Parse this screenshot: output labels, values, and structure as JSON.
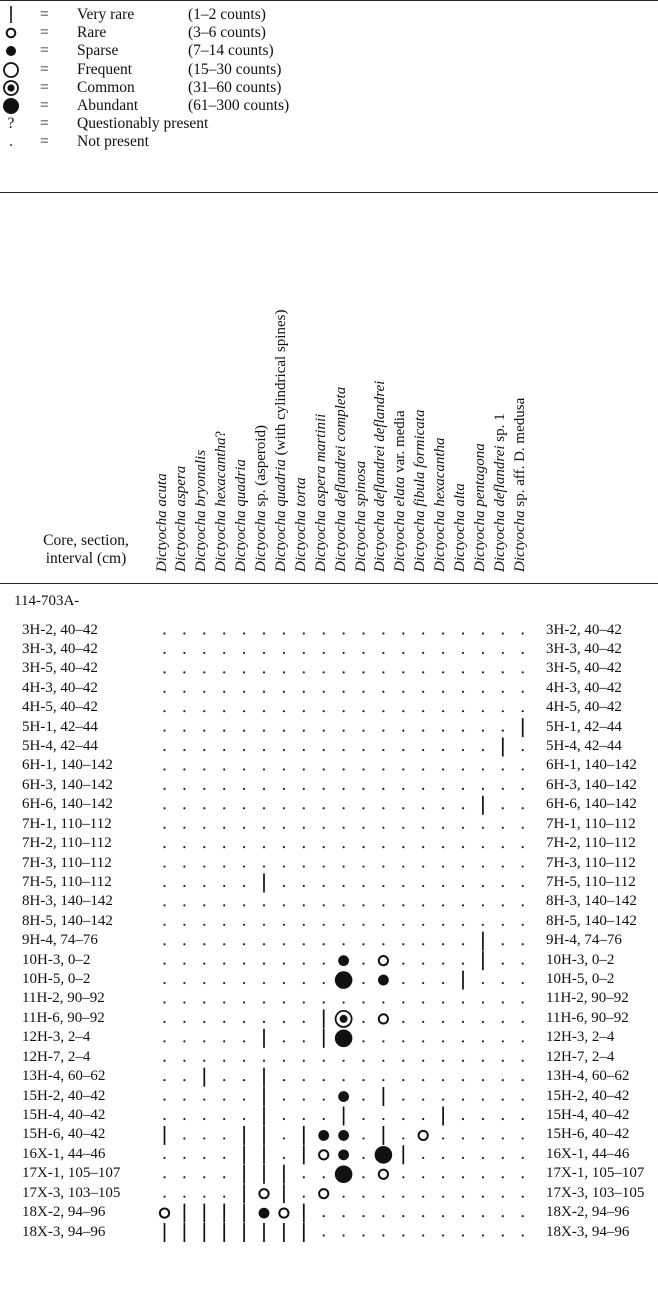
{
  "legend": [
    {
      "symbol": "bar-icon",
      "eq": "=",
      "name": "Very rare",
      "range": "(1–2 counts)"
    },
    {
      "symbol": "small-open-circle-icon",
      "eq": "=",
      "name": "Rare",
      "range": "(3–6 counts)"
    },
    {
      "symbol": "small-filled-circle-icon",
      "eq": "=",
      "name": "Sparse",
      "range": "(7–14 counts)"
    },
    {
      "symbol": "large-open-circle-icon",
      "eq": "=",
      "name": "Frequent",
      "range": "(15–30 counts)"
    },
    {
      "symbol": "dotted-circle-icon",
      "eq": "=",
      "name": "Common",
      "range": "(31–60 counts)"
    },
    {
      "symbol": "large-filled-circle-icon",
      "eq": "=",
      "name": "Abundant",
      "range": "(61–300 counts)"
    },
    {
      "symbol": "?",
      "eq": "=",
      "name": "Questionably present",
      "range": ""
    },
    {
      "symbol": ".",
      "eq": "=",
      "name": "Not present",
      "range": ""
    }
  ],
  "header": {
    "row_header_line1": "Core, section,",
    "row_header_line2": "interval (cm)"
  },
  "taxa": [
    {
      "it": "Dictyocha acuta",
      "rest": ""
    },
    {
      "it": "Dictyocha aspera",
      "rest": ""
    },
    {
      "it": "Dictyocha bryonalis",
      "rest": ""
    },
    {
      "it": "Dictyocha hexacantha",
      "rest": "?"
    },
    {
      "it": "Dictyocha quadria",
      "rest": ""
    },
    {
      "it": "Dictyocha",
      "rest": " sp. (asperoid)"
    },
    {
      "it": "Dictyocha quadria",
      "rest": " (with cylindrical spines)"
    },
    {
      "it": "Dictyocha torta",
      "rest": ""
    },
    {
      "it": "Dictyocha aspera martinii",
      "rest": ""
    },
    {
      "it": "Dictyocha deflandrei completa",
      "rest": ""
    },
    {
      "it": "Dictyocha spinosa",
      "rest": ""
    },
    {
      "it": "Dictyocha deflandrei deflandrei",
      "rest": ""
    },
    {
      "it": "Dictyocha elata",
      "rest": " var. media"
    },
    {
      "it": "Dictyocha fibula formicata",
      "rest": ""
    },
    {
      "it": "Dictyocha hexacantha",
      "rest": ""
    },
    {
      "it": "Dictyocha alta",
      "rest": ""
    },
    {
      "it": "Dictyocha pentagona",
      "rest": ""
    },
    {
      "it": "Dictyocha deflandrei",
      "rest": " sp. 1"
    },
    {
      "it": "Dictyocha",
      "rest": " sp. aff. D. medusa"
    }
  ],
  "hole": "114-703A-",
  "samples": [
    "3H-2, 40–42",
    "3H-3, 40–42",
    "3H-5, 40–42",
    "4H-3, 40–42",
    "4H-5, 40–42",
    "5H-1, 42–44",
    "5H-4, 42–44",
    "6H-1, 140–142",
    "6H-3, 140–142",
    "6H-6, 140–142",
    "7H-1, 110–112",
    "7H-2, 110–112",
    "7H-3, 110–112",
    "7H-5, 110–112",
    "8H-3, 140–142",
    "8H-5, 140–142",
    "9H-4, 74–76",
    "10H-3, 0–2",
    "10H-5, 0–2",
    "11H-2, 90–92",
    "11H-6, 90–92",
    "12H-3, 2–4",
    "12H-7, 2–4",
    "13H-4, 60–62",
    "15H-2, 40–42",
    "15H-4, 40–42",
    "15H-6, 40–42",
    "16X-1, 44–46",
    "17X-1, 105–107",
    "17X-3, 103–105",
    "18X-2, 94–96",
    "18X-3, 94–96"
  ],
  "occurrences": [
    {
      "row": 5,
      "col": 18,
      "code": "bar"
    },
    {
      "row": 6,
      "col": 17,
      "code": "bar"
    },
    {
      "row": 9,
      "col": 16,
      "code": "bar"
    },
    {
      "row": 13,
      "col": 5,
      "code": "bar"
    },
    {
      "row": 16,
      "col": 16,
      "code": "bar"
    },
    {
      "row": 17,
      "col": 9,
      "code": "sparse"
    },
    {
      "row": 17,
      "col": 11,
      "code": "rare"
    },
    {
      "row": 17,
      "col": 16,
      "code": "bar"
    },
    {
      "row": 18,
      "col": 9,
      "code": "abundant"
    },
    {
      "row": 18,
      "col": 11,
      "code": "sparse"
    },
    {
      "row": 18,
      "col": 15,
      "code": "bar"
    },
    {
      "row": 20,
      "col": 8,
      "code": "bar"
    },
    {
      "row": 20,
      "col": 9,
      "code": "common"
    },
    {
      "row": 20,
      "col": 11,
      "code": "rare"
    },
    {
      "row": 21,
      "col": 5,
      "code": "bar"
    },
    {
      "row": 21,
      "col": 8,
      "code": "bar"
    },
    {
      "row": 21,
      "col": 9,
      "code": "abundant"
    },
    {
      "row": 23,
      "col": 2,
      "code": "bar"
    },
    {
      "row": 23,
      "col": 5,
      "code": "bar"
    },
    {
      "row": 24,
      "col": 5,
      "code": "bar"
    },
    {
      "row": 24,
      "col": 9,
      "code": "sparse"
    },
    {
      "row": 24,
      "col": 11,
      "code": "bar"
    },
    {
      "row": 25,
      "col": 5,
      "code": "bar"
    },
    {
      "row": 25,
      "col": 9,
      "code": "bar"
    },
    {
      "row": 25,
      "col": 14,
      "code": "bar"
    },
    {
      "row": 26,
      "col": 0,
      "code": "bar"
    },
    {
      "row": 26,
      "col": 4,
      "code": "bar"
    },
    {
      "row": 26,
      "col": 5,
      "code": "bar"
    },
    {
      "row": 26,
      "col": 7,
      "code": "bar"
    },
    {
      "row": 26,
      "col": 8,
      "code": "sparse"
    },
    {
      "row": 26,
      "col": 9,
      "code": "sparse"
    },
    {
      "row": 26,
      "col": 11,
      "code": "bar"
    },
    {
      "row": 26,
      "col": 13,
      "code": "rare"
    },
    {
      "row": 27,
      "col": 4,
      "code": "bar"
    },
    {
      "row": 27,
      "col": 5,
      "code": "bar"
    },
    {
      "row": 27,
      "col": 7,
      "code": "bar"
    },
    {
      "row": 27,
      "col": 8,
      "code": "rare"
    },
    {
      "row": 27,
      "col": 9,
      "code": "sparse"
    },
    {
      "row": 27,
      "col": 11,
      "code": "abundant"
    },
    {
      "row": 27,
      "col": 12,
      "code": "bar"
    },
    {
      "row": 28,
      "col": 4,
      "code": "bar"
    },
    {
      "row": 28,
      "col": 5,
      "code": "bar"
    },
    {
      "row": 28,
      "col": 6,
      "code": "bar"
    },
    {
      "row": 28,
      "col": 9,
      "code": "abundant"
    },
    {
      "row": 28,
      "col": 11,
      "code": "rare"
    },
    {
      "row": 29,
      "col": 4,
      "code": "bar"
    },
    {
      "row": 29,
      "col": 5,
      "code": "rare"
    },
    {
      "row": 29,
      "col": 6,
      "code": "bar"
    },
    {
      "row": 29,
      "col": 8,
      "code": "rare"
    },
    {
      "row": 30,
      "col": 0,
      "code": "rare"
    },
    {
      "row": 30,
      "col": 1,
      "code": "bar"
    },
    {
      "row": 30,
      "col": 2,
      "code": "bar"
    },
    {
      "row": 30,
      "col": 3,
      "code": "bar"
    },
    {
      "row": 30,
      "col": 4,
      "code": "bar"
    },
    {
      "row": 30,
      "col": 5,
      "code": "sparse"
    },
    {
      "row": 30,
      "col": 6,
      "code": "rare"
    },
    {
      "row": 30,
      "col": 7,
      "code": "bar"
    },
    {
      "row": 31,
      "col": 0,
      "code": "bar"
    },
    {
      "row": 31,
      "col": 1,
      "code": "bar"
    },
    {
      "row": 31,
      "col": 2,
      "code": "bar"
    },
    {
      "row": 31,
      "col": 3,
      "code": "bar"
    },
    {
      "row": 31,
      "col": 4,
      "code": "bar"
    },
    {
      "row": 31,
      "col": 5,
      "code": "bar"
    },
    {
      "row": 31,
      "col": 6,
      "code": "bar"
    },
    {
      "row": 31,
      "col": 7,
      "code": "bar"
    }
  ]
}
